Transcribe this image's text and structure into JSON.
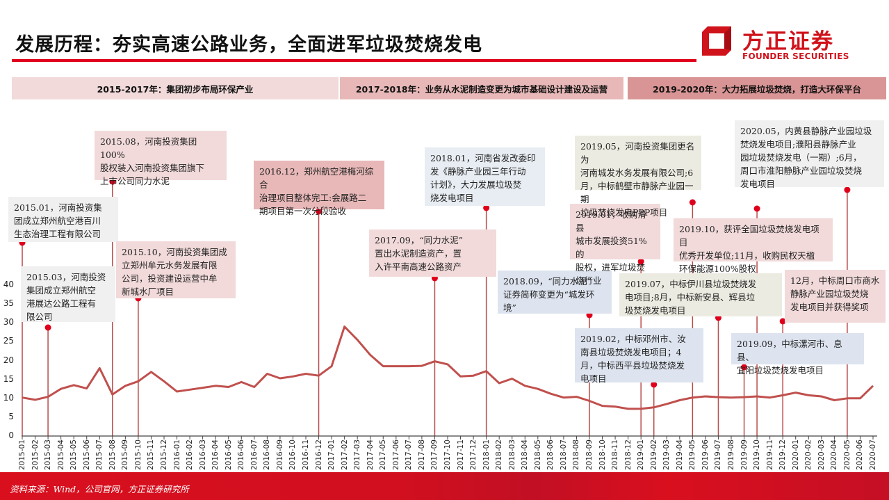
{
  "header": {
    "title": "发展历程：夯实高速公路业务，全面进军垃圾焚烧发电",
    "logo_cn": "方正证券",
    "logo_en": "FOUNDER SECURITIES",
    "logo_icon": "founder-logo-icon",
    "accent_color": "#e0001b"
  },
  "phases": [
    {
      "label": "2015-2017年：集团初步布局环保产业",
      "color": "#f2dada"
    },
    {
      "label": "2017-2018年：业务从水泥制造变更为城市基础设计建设及运营",
      "color": "#e8b8b8"
    },
    {
      "label": "2019-2020年：大力拓展垃圾焚烧，打造大环保平台",
      "color": "#d99595"
    }
  ],
  "events": [
    {
      "text": "2015.01，河南投资集\n团成立郑州航空港百川\n生态治理工程有限公司",
      "date": "2015-01"
    },
    {
      "text": "2015.03，河南投资\n集团成立郑州航空\n港展达公路工程有\n限公司",
      "date": "2015-03"
    },
    {
      "text": "2015.08，河南投资集团100%\n股权装入河南投资集团旗下\n上市公司同力水泥",
      "date": "2015-08"
    },
    {
      "text": "2015.10，河南投资集团成\n立郑州牟元水务发展有限\n公司，投资建设运营中牟\n新城水厂项目",
      "date": "2015-10"
    },
    {
      "text": "2016.12，郑州航空港梅河综合\n治理项目整体完工:会展路二\n期项目第一次分段验收",
      "date": "2016-12"
    },
    {
      "text": "2017.09，“同力水泥”\n置出水泥制造资产，置\n入许平南高速公路资产",
      "date": "2017-09"
    },
    {
      "text": "2018.01，河南省发改委印\n发《静脉产业园三年行动\n计划》，大力发展垃圾焚\n烧发电项目",
      "date": "2018-01"
    },
    {
      "text": "2018.09，“同力水泥”\n证券简称变更为“城发环\n境”",
      "date": "2018-09"
    },
    {
      "text": "2019.01，收购滑县\n城市发展投资51%的\n股权，进军垃圾焚\n烧行业",
      "date": "2019-01"
    },
    {
      "text": "2019.02，中标邓州市、汝\n南县垃圾焚烧发电项目；4\n月，中标西平县垃圾焚烧发\n电项目",
      "date": "2019-02"
    },
    {
      "text": "2019.05，河南投资集团更名为\n河南城发水务发展有限公司;6\n月，中标鹤壁市静脉产业园一期\n垃圾焚烧发电PPP项目",
      "date": "2019-05"
    },
    {
      "text": "2019.07，中标伊川县垃圾焚烧发\n电项目;8月，中标新安县、辉县垃\n圾焚烧发电项目",
      "date": "2019-07"
    },
    {
      "text": "2019.09，中标漯河市、息县、\n宜阳垃圾焚烧发电项目",
      "date": "2019-09"
    },
    {
      "text": "2019.10，获评全国垃圾焚烧发电项目\n优秀开发单位;11月，收购民权天楹\n环保能源100%股权",
      "date": "2019-10"
    },
    {
      "text": "12月，中标周口市商水\n静脉产业园垃圾焚烧\n发电项目并获得奖项",
      "date": "2019-12"
    },
    {
      "text": "2020.05，内黄县静脉产业园垃圾\n焚烧发电项目;濮阳县静脉产业\n园垃圾焚烧发电（一期）;6月，\n周口市淮阳静脉产业园垃圾焚烧\n发电项目",
      "date": "2020-05"
    }
  ],
  "footer": {
    "source": "资料来源：Wind，公司官网，方正证券研究所"
  },
  "chart_data": {
    "type": "line",
    "title": "",
    "xlabel": "",
    "ylabel": "",
    "ylim": [
      0,
      40
    ],
    "yticks": [
      0,
      5,
      10,
      15,
      20,
      25,
      30,
      35,
      40
    ],
    "grid": false,
    "legend": "none",
    "line_color": "#c0504d",
    "categories": [
      "2015-01",
      "2015-02",
      "2015-03",
      "2015-04",
      "2015-05",
      "2015-06",
      "2015-07",
      "2015-08",
      "2015-09",
      "2015-10",
      "2015-11",
      "2015-12",
      "2016-01",
      "2016-02",
      "2016-03",
      "2016-04",
      "2016-05",
      "2016-06",
      "2016-07",
      "2016-08",
      "2016-09",
      "2016-10",
      "2016-11",
      "2016-12",
      "2017-01",
      "2017-02",
      "2017-03",
      "2017-04",
      "2017-05",
      "2017-06",
      "2017-07",
      "2017-08",
      "2017-09",
      "2017-10",
      "2017-11",
      "2017-12",
      "2018-01",
      "2018-02",
      "2018-03",
      "2018-04",
      "2018-05",
      "2018-06",
      "2018-07",
      "2018-08",
      "2018-09",
      "2018-10",
      "2018-11",
      "2018-12",
      "2019-01",
      "2019-02",
      "2019-03",
      "2019-04",
      "2019-05",
      "2019-06",
      "2019-07",
      "2019-08",
      "2019-09",
      "2019-10",
      "2019-11",
      "2019-12",
      "2020-01",
      "2020-02",
      "2020-03",
      "2020-04",
      "2020-05",
      "2020-06",
      "2020-07"
    ],
    "values": [
      10.2,
      9.6,
      10.4,
      12.5,
      13.5,
      12.6,
      18.0,
      11.0,
      13.3,
      14.5,
      17.0,
      14.5,
      11.8,
      12.3,
      12.8,
      13.3,
      13.0,
      14.3,
      13.0,
      16.5,
      15.3,
      15.8,
      16.5,
      16.0,
      18.5,
      29.0,
      25.5,
      21.5,
      18.5,
      18.5,
      18.5,
      18.6,
      19.8,
      19.0,
      15.8,
      16.0,
      17.2,
      14.0,
      15.2,
      13.3,
      12.5,
      11.2,
      10.2,
      10.4,
      9.3,
      8.0,
      7.8,
      7.2,
      7.2,
      7.6,
      8.5,
      9.5,
      10.2,
      10.5,
      10.3,
      10.2,
      10.3,
      10.5,
      10.2,
      10.8,
      11.5,
      10.8,
      10.5,
      9.5,
      10.0,
      10.0,
      13.3
    ],
    "annotated_dates": [
      "2015-01",
      "2015-03",
      "2015-08",
      "2015-10",
      "2016-12",
      "2017-09",
      "2018-01",
      "2018-09",
      "2019-01",
      "2019-02",
      "2019-05",
      "2019-07",
      "2019-09",
      "2019-10",
      "2019-12",
      "2020-05"
    ]
  }
}
